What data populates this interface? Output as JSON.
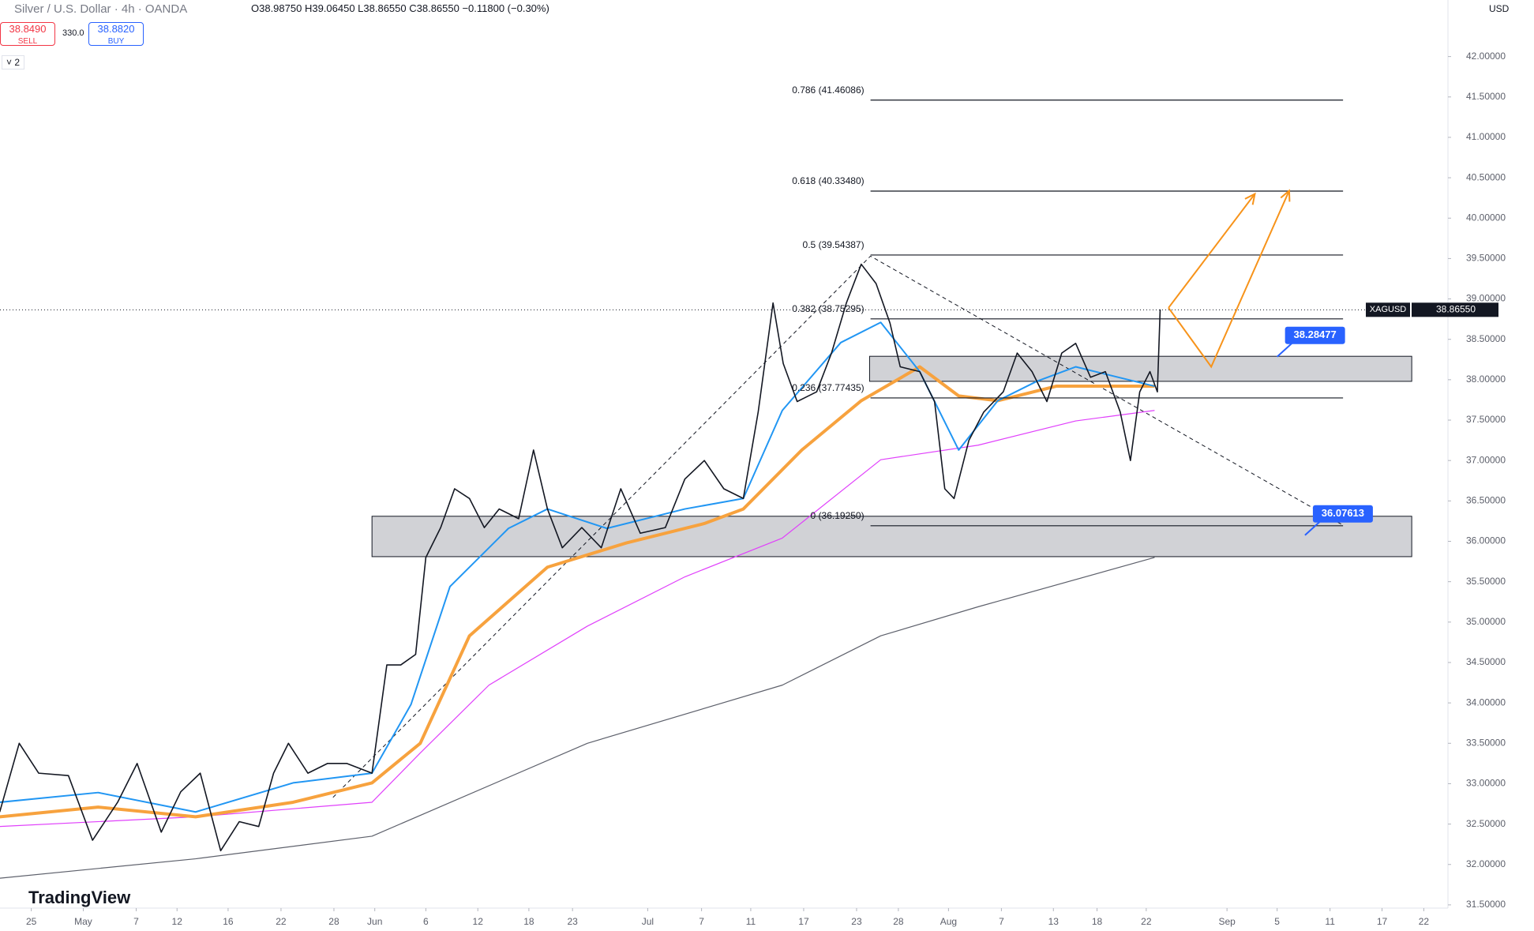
{
  "header": {
    "symbol_title": "Silver / U.S. Dollar · 4h · OANDA",
    "ohlc": "O38.98750 H39.06450 L38.86550 C38.86550 −0.11800 (−0.30%)",
    "sell_price": "38.8490",
    "sell_label": "SELL",
    "spread": "330.0",
    "buy_price": "38.8820",
    "buy_label": "BUY",
    "indicator_count": "2",
    "currency": "USD",
    "logo": "TradingView"
  },
  "chart_data": {
    "type": "line",
    "xlim": [
      -3.37,
      152.6
    ],
    "ylim": [
      31.46,
      42.7
    ],
    "xticks": [
      {
        "value": 0,
        "label": "25"
      },
      {
        "value": 5.6,
        "label": "May"
      },
      {
        "value": 11.3,
        "label": "7"
      },
      {
        "value": 15.7,
        "label": "12"
      },
      {
        "value": 21.2,
        "label": "16"
      },
      {
        "value": 26.9,
        "label": "22"
      },
      {
        "value": 32.6,
        "label": "28"
      },
      {
        "value": 37,
        "label": "Jun"
      },
      {
        "value": 42.5,
        "label": "6"
      },
      {
        "value": 48.1,
        "label": "12"
      },
      {
        "value": 53.6,
        "label": "18"
      },
      {
        "value": 58.3,
        "label": "23"
      },
      {
        "value": 66.4,
        "label": "Jul"
      },
      {
        "value": 72.2,
        "label": "7"
      },
      {
        "value": 77.5,
        "label": "11"
      },
      {
        "value": 83.2,
        "label": "17"
      },
      {
        "value": 88.9,
        "label": "23"
      },
      {
        "value": 93.4,
        "label": "28"
      },
      {
        "value": 98.8,
        "label": "Aug"
      },
      {
        "value": 104.5,
        "label": "7"
      },
      {
        "value": 110.1,
        "label": "13"
      },
      {
        "value": 114.8,
        "label": "18"
      },
      {
        "value": 120.1,
        "label": "22"
      },
      {
        "value": 128.8,
        "label": "Sep"
      },
      {
        "value": 134.2,
        "label": "5"
      },
      {
        "value": 139.9,
        "label": "11"
      },
      {
        "value": 145.5,
        "label": "17"
      },
      {
        "value": 150,
        "label": "22"
      }
    ],
    "yticks": [
      {
        "value": 31.5,
        "label": "31.50000"
      },
      {
        "value": 32,
        "label": "32.00000"
      },
      {
        "value": 32.5,
        "label": "32.50000"
      },
      {
        "value": 33,
        "label": "33.00000"
      },
      {
        "value": 33.5,
        "label": "33.50000"
      },
      {
        "value": 34,
        "label": "34.00000"
      },
      {
        "value": 34.5,
        "label": "34.50000"
      },
      {
        "value": 35,
        "label": "35.00000"
      },
      {
        "value": 35.5,
        "label": "35.50000"
      },
      {
        "value": 36,
        "label": "36.00000"
      },
      {
        "value": 36.5,
        "label": "36.50000"
      },
      {
        "value": 37,
        "label": "37.00000"
      },
      {
        "value": 37.5,
        "label": "37.50000"
      },
      {
        "value": 38,
        "label": "38.00000"
      },
      {
        "value": 38.5,
        "label": "38.50000"
      },
      {
        "value": 39,
        "label": "39.00000"
      },
      {
        "value": 39.5,
        "label": "39.50000"
      },
      {
        "value": 40,
        "label": "40.00000"
      },
      {
        "value": 40.5,
        "label": "40.50000"
      },
      {
        "value": 41,
        "label": "41.00000"
      },
      {
        "value": 41.5,
        "label": "41.50000"
      },
      {
        "value": 42,
        "label": "42.00000"
      }
    ],
    "grid": false,
    "zones": [
      {
        "xlim": [
          90.3,
          148.7
        ],
        "ylim": [
          37.98,
          38.29
        ],
        "color": "#c9cacf"
      },
      {
        "xlim": [
          36.7,
          148.7
        ],
        "ylim": [
          35.81,
          36.31
        ],
        "color": "#c9cacf"
      }
    ],
    "series": [
      {
        "color": "#5d606b",
        "width": 1.2,
        "x": [
          -3.4,
          17.7,
          36.7,
          59.9,
          80.9,
          91.5,
          102,
          121
        ],
        "values": [
          31.83,
          32.07,
          32.35,
          33.5,
          34.22,
          34.83,
          35.19,
          35.8
        ]
      },
      {
        "color": "#e040fb",
        "width": 1.2,
        "x": [
          -3.4,
          17.7,
          36.7,
          41.9,
          49.3,
          59.9,
          70.4,
          80.9,
          91.5,
          102,
          112.5,
          121
        ],
        "values": [
          32.47,
          32.59,
          32.77,
          33.38,
          34.22,
          34.95,
          35.56,
          36.04,
          37.01,
          37.19,
          37.49,
          37.62
        ]
      },
      {
        "color": "#f7a23e",
        "width": 4,
        "x": [
          -3.4,
          7.2,
          17.7,
          28.2,
          36.7,
          41.9,
          47.2,
          55.6,
          64.1,
          72.5,
          76.7,
          83,
          89.4,
          95.7,
          99.9,
          104.1,
          110.4,
          121
        ],
        "values": [
          32.59,
          32.71,
          32.59,
          32.77,
          33.01,
          33.5,
          34.83,
          35.68,
          35.98,
          36.22,
          36.4,
          37.13,
          37.74,
          38.16,
          37.8,
          37.74,
          37.92,
          37.92
        ]
      },
      {
        "color": "#2196f3",
        "width": 2,
        "x": [
          -3.4,
          7.2,
          17.7,
          28.2,
          36.7,
          40.9,
          45.1,
          51.4,
          55.6,
          62,
          70.4,
          76.7,
          80.9,
          87.2,
          91.5,
          95.7,
          99.9,
          104.1,
          108.3,
          112.5,
          121
        ],
        "values": [
          32.77,
          32.89,
          32.65,
          33.01,
          33.13,
          33.98,
          35.44,
          36.16,
          36.4,
          36.16,
          36.4,
          36.53,
          37.62,
          38.46,
          38.71,
          38.1,
          37.13,
          37.74,
          37.98,
          38.16,
          37.92
        ]
      },
      {
        "color": "#131722",
        "width": 1.6,
        "x": [
          -3.4,
          -1.3,
          0.8,
          4,
          6.6,
          9.3,
          11.4,
          14,
          16.1,
          18.2,
          20.4,
          22.4,
          24.5,
          26.1,
          27.7,
          29.8,
          31.9,
          34,
          36.7,
          38.3,
          39.8,
          41.4,
          42.5,
          44.1,
          45.6,
          47.2,
          48.8,
          50.4,
          52.5,
          54.1,
          55.6,
          57.2,
          59.3,
          61.4,
          63.5,
          65.6,
          68.3,
          70.4,
          72.5,
          74.6,
          76.7,
          78.3,
          79.9,
          81,
          82.5,
          84.6,
          86.2,
          87.8,
          89.4,
          91,
          92.5,
          93.6,
          95.7,
          97.3,
          98.4,
          99.4,
          101,
          102.6,
          104.7,
          106.2,
          107.8,
          109.4,
          111,
          112.5,
          114.1,
          115.7,
          117.3,
          118.4,
          119.4,
          120.5,
          121.3,
          121.6
        ],
        "values": [
          32.65,
          33.5,
          33.13,
          33.1,
          32.3,
          32.77,
          33.25,
          32.4,
          32.9,
          33.13,
          32.17,
          32.53,
          32.47,
          33.13,
          33.5,
          33.13,
          33.25,
          33.25,
          33.13,
          34.47,
          34.47,
          34.6,
          35.8,
          36.17,
          36.65,
          36.53,
          36.17,
          36.4,
          36.28,
          37.13,
          36.4,
          35.92,
          36.17,
          35.92,
          36.65,
          36.1,
          36.17,
          36.77,
          37,
          36.65,
          36.53,
          37.6,
          38.95,
          38.2,
          37.73,
          37.85,
          38.33,
          38.95,
          39.43,
          39.19,
          38.7,
          38.16,
          38.1,
          37.73,
          36.65,
          36.53,
          37.25,
          37.6,
          37.85,
          38.33,
          38.1,
          37.73,
          38.33,
          38.45,
          38.03,
          38.1,
          37.6,
          37,
          37.85,
          38.1,
          37.85,
          38.87
        ]
      }
    ],
    "fib_x": [
      90.4,
      141.3
    ],
    "fib_levels": [
      {
        "label": "0.786 (41.46086)",
        "value": 41.46086
      },
      {
        "label": "0.618 (40.33480)",
        "value": 40.3348
      },
      {
        "label": "0.5 (39.54387)",
        "value": 39.54387
      },
      {
        "label": "0.382 (38.75295)",
        "value": 38.75295
      },
      {
        "label": "0.236 (37.77435)",
        "value": 37.77435
      },
      {
        "label": "0 (36.19250)",
        "value": 36.1925
      }
    ],
    "trend_lines": [
      {
        "x": [
          32.5,
          90.4,
          141.3
        ],
        "y": [
          32.83,
          39.53,
          36.2
        ]
      }
    ],
    "arrows": [
      {
        "color": "#f7931a",
        "x": [
          122.5,
          127.1,
          135.5
        ],
        "y": [
          38.89,
          38.16,
          40.34
        ]
      },
      {
        "color": "#f7931a",
        "x": [
          122.5,
          131.8
        ],
        "y": [
          38.89,
          40.3
        ]
      }
    ],
    "callouts": [
      {
        "label": "38.28477",
        "value": 38.28477,
        "x": 134.2
      },
      {
        "label": "36.07613",
        "value": 36.07613,
        "x": 137.2
      }
    ],
    "last_price": {
      "symbol": "XAGUSD",
      "label": "38.86550",
      "value": 38.8655
    }
  }
}
